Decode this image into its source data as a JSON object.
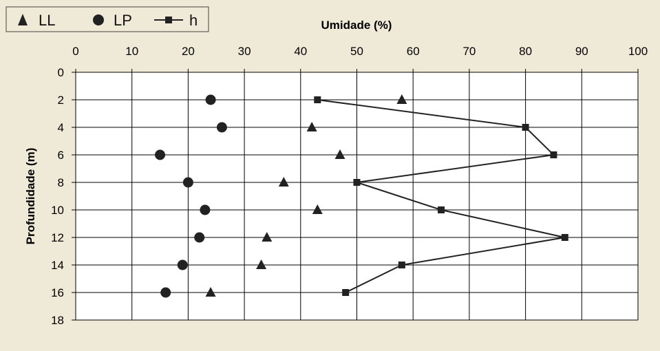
{
  "colors": {
    "background": "#efe9d8",
    "plot": "#ffffff",
    "ink": "#222222",
    "grid": "#000000"
  },
  "legend": {
    "entries": [
      {
        "label": "LL",
        "marker": "triangle"
      },
      {
        "label": "LP",
        "marker": "circle"
      },
      {
        "label": "h",
        "marker": "line-square"
      }
    ]
  },
  "chart_data": {
    "type": "scatter",
    "title": "",
    "xlabel": "Umidade (%)",
    "ylabel": "Profundidade (m)",
    "xlim": [
      0,
      100
    ],
    "ylim": [
      0,
      18
    ],
    "y_inverted": true,
    "x_axis_position": "top",
    "x_ticks": [
      0,
      10,
      20,
      30,
      40,
      50,
      60,
      70,
      80,
      90,
      100
    ],
    "y_ticks": [
      0,
      2,
      4,
      6,
      8,
      10,
      12,
      14,
      16,
      18
    ],
    "grid": true,
    "legend_position": "top-left",
    "series": [
      {
        "name": "LL",
        "marker": "triangle",
        "line": false,
        "points": [
          [
            58,
            2
          ],
          [
            42,
            4
          ],
          [
            47,
            6
          ],
          [
            37,
            8
          ],
          [
            43,
            10
          ],
          [
            34,
            12
          ],
          [
            33,
            14
          ],
          [
            24,
            16
          ]
        ]
      },
      {
        "name": "LP",
        "marker": "circle",
        "line": false,
        "points": [
          [
            24,
            2
          ],
          [
            26,
            4
          ],
          [
            15,
            6
          ],
          [
            20,
            8
          ],
          [
            23,
            10
          ],
          [
            22,
            12
          ],
          [
            19,
            14
          ],
          [
            16,
            16
          ]
        ]
      },
      {
        "name": "h",
        "marker": "square",
        "line": true,
        "points": [
          [
            43,
            2
          ],
          [
            80,
            4
          ],
          [
            85,
            6
          ],
          [
            50,
            8
          ],
          [
            65,
            10
          ],
          [
            87,
            12
          ],
          [
            58,
            14
          ],
          [
            48,
            16
          ]
        ]
      }
    ]
  }
}
